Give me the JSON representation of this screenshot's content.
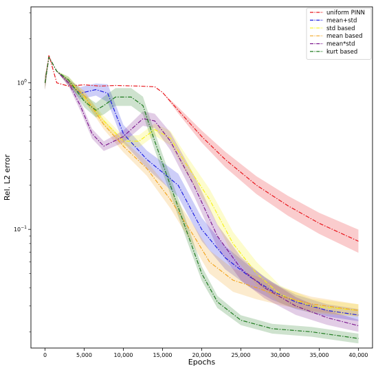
{
  "chart_data": {
    "type": "line",
    "xlabel": "Epochs",
    "ylabel": "Rel. L2 error",
    "xlim": [
      -1800,
      41800
    ],
    "ylim": [
      0.0155,
      3.3
    ],
    "yscale": "log",
    "grid": false,
    "legend_position": "top-right",
    "x_ticks": [
      0,
      5000,
      10000,
      15000,
      20000,
      25000,
      30000,
      35000,
      40000
    ],
    "x_tick_labels": [
      "0",
      "5,000",
      "10,000",
      "15,000",
      "20,000",
      "25,000",
      "30,000",
      "35,000",
      "40,000"
    ],
    "y_ticks": [
      1,
      0.1
    ],
    "y_tick_labels": [
      "10^0",
      "10^-1"
    ],
    "series": [
      {
        "name": "uniform PINN",
        "color": "#e8151b",
        "x": [
          0,
          500,
          1500,
          3000,
          5000,
          7000,
          9000,
          12000,
          14000,
          15000,
          17000,
          20000,
          23000,
          27000,
          31000,
          35000,
          40000
        ],
        "y": [
          1.0,
          1.55,
          1.0,
          0.95,
          0.97,
          0.95,
          0.96,
          0.95,
          0.94,
          0.86,
          0.65,
          0.43,
          0.3,
          0.2,
          0.145,
          0.11,
          0.083
        ],
        "band": [
          0.9,
          1.0,
          1.0,
          1.0,
          1.0,
          1.0,
          1.0,
          1.0,
          1.0,
          1.0,
          1.05,
          1.1,
          1.13,
          1.15,
          1.17,
          1.18,
          1.2
        ]
      },
      {
        "name": "mean+std",
        "color": "#1d1ee0",
        "x": [
          0,
          500,
          1500,
          3000,
          4500,
          6500,
          8000,
          10000,
          13000,
          17000,
          20000,
          23000,
          26000,
          29000,
          32000,
          36000,
          40000
        ],
        "y": [
          1.0,
          1.5,
          1.2,
          1.0,
          0.85,
          0.9,
          0.85,
          0.45,
          0.3,
          0.2,
          0.1,
          0.064,
          0.048,
          0.038,
          0.032,
          0.028,
          0.026
        ],
        "band": [
          0.9,
          1.0,
          1.0,
          1.05,
          1.1,
          1.1,
          1.15,
          1.15,
          1.15,
          1.2,
          1.2,
          1.2,
          1.18,
          1.15,
          1.12,
          1.1,
          1.1
        ]
      },
      {
        "name": "std based",
        "color": "#f7f31c",
        "x": [
          0,
          500,
          1500,
          3000,
          5000,
          7500,
          10000,
          12000,
          14000,
          16000,
          18000,
          21000,
          24000,
          27000,
          30000,
          34000,
          40000
        ],
        "y": [
          1.0,
          1.5,
          1.2,
          1.05,
          0.8,
          0.55,
          0.4,
          0.4,
          0.48,
          0.42,
          0.28,
          0.16,
          0.08,
          0.05,
          0.036,
          0.03,
          0.028
        ],
        "band": [
          0.9,
          1.0,
          1.0,
          1.05,
          1.08,
          1.08,
          1.08,
          1.1,
          1.1,
          1.12,
          1.15,
          1.18,
          1.2,
          1.2,
          1.15,
          1.12,
          1.1
        ]
      },
      {
        "name": "mean based",
        "color": "#f2a622",
        "x": [
          0,
          500,
          1500,
          3000,
          5000,
          7500,
          10000,
          13000,
          16000,
          19000,
          21000,
          24000,
          27000,
          30000,
          34000,
          40000
        ],
        "y": [
          1.0,
          1.5,
          1.2,
          1.0,
          0.82,
          0.52,
          0.37,
          0.26,
          0.16,
          0.09,
          0.06,
          0.045,
          0.04,
          0.035,
          0.031,
          0.028
        ],
        "band": [
          0.9,
          1.0,
          1.0,
          1.05,
          1.08,
          1.08,
          1.1,
          1.12,
          1.15,
          1.18,
          1.2,
          1.2,
          1.2,
          1.15,
          1.12,
          1.1
        ]
      },
      {
        "name": "mean*std",
        "color": "#7d1a8f",
        "x": [
          0,
          500,
          1500,
          3000,
          4500,
          6000,
          7500,
          10000,
          12500,
          14000,
          16000,
          19000,
          22000,
          25000,
          28000,
          32000,
          36000,
          40000
        ],
        "y": [
          1.0,
          1.5,
          1.2,
          1.0,
          0.7,
          0.45,
          0.37,
          0.43,
          0.57,
          0.55,
          0.4,
          0.2,
          0.09,
          0.054,
          0.04,
          0.03,
          0.025,
          0.022
        ],
        "band": [
          0.9,
          1.0,
          1.0,
          1.05,
          1.08,
          1.08,
          1.08,
          1.1,
          1.12,
          1.12,
          1.15,
          1.18,
          1.2,
          1.2,
          1.18,
          1.15,
          1.12,
          1.1
        ]
      },
      {
        "name": "kurt based",
        "color": "#1e7a1e",
        "x": [
          0,
          500,
          1500,
          3000,
          5000,
          6500,
          7500,
          9000,
          11000,
          12500,
          14000,
          16000,
          18000,
          20000,
          22000,
          25000,
          29000,
          34000,
          40000
        ],
        "y": [
          1.0,
          1.5,
          1.2,
          1.05,
          0.75,
          0.65,
          0.7,
          0.8,
          0.8,
          0.7,
          0.4,
          0.2,
          0.1,
          0.05,
          0.032,
          0.024,
          0.021,
          0.02,
          0.018
        ],
        "band": [
          0.9,
          1.0,
          1.0,
          1.05,
          1.1,
          1.12,
          1.15,
          1.15,
          1.15,
          1.15,
          1.15,
          1.15,
          1.15,
          1.12,
          1.1,
          1.08,
          1.08,
          1.08,
          1.08
        ]
      }
    ]
  }
}
